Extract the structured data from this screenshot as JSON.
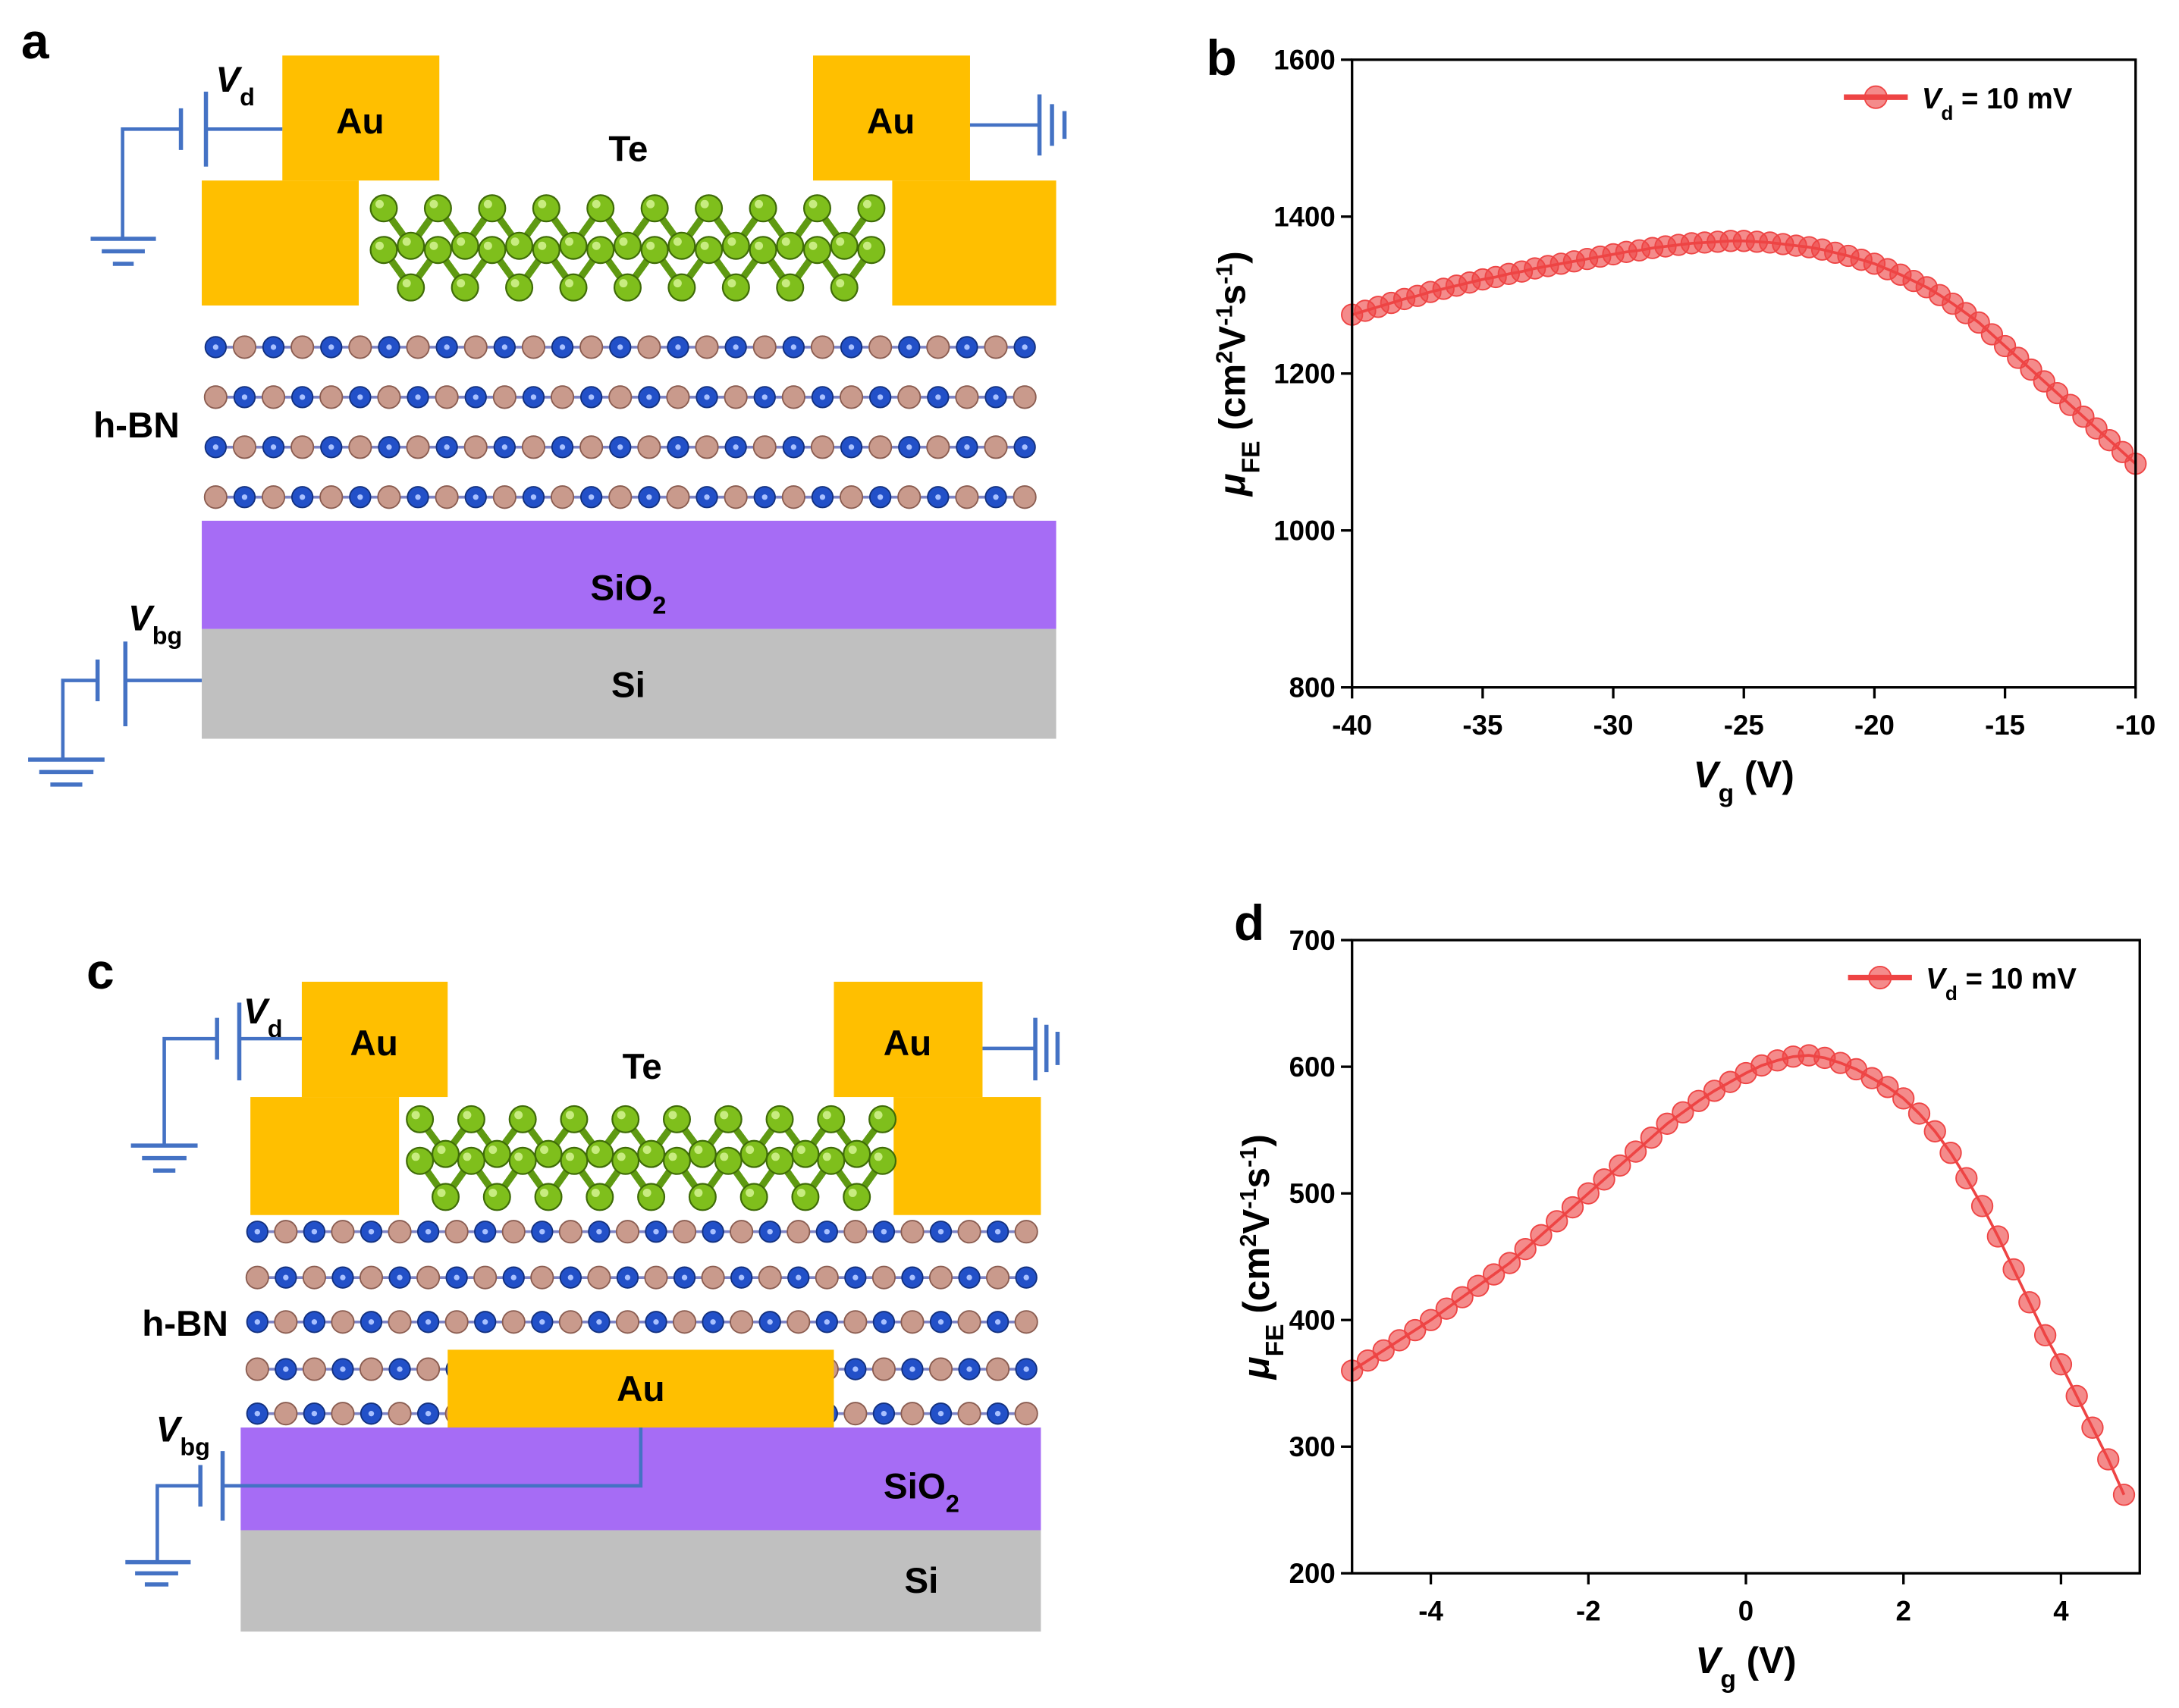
{
  "panels": {
    "a": {
      "letter": "a",
      "au": [
        "Au",
        "Au"
      ],
      "te": "Te",
      "hbn": "h-BN",
      "sio2": {
        "text": "SiO",
        "sub": "2"
      },
      "si": "Si",
      "vd": {
        "symbol": "V",
        "sub": "d"
      },
      "vbg": {
        "symbol": "V",
        "sub": "bg"
      }
    },
    "c": {
      "letter": "c",
      "au": [
        "Au",
        "Au",
        "Au"
      ],
      "te": "Te",
      "hbn": "h-BN",
      "sio2": {
        "text": "SiO",
        "sub": "2"
      },
      "si": "Si",
      "vd": {
        "symbol": "V",
        "sub": "d"
      },
      "vbg": {
        "symbol": "V",
        "sub": "bg"
      }
    }
  },
  "chart_data": [
    {
      "type": "line",
      "panel_label": "b",
      "x": [
        -40,
        -39.5,
        -39,
        -38.5,
        -38,
        -37.5,
        -37,
        -36.5,
        -36,
        -35.5,
        -35,
        -34.5,
        -34,
        -33.5,
        -33,
        -32.5,
        -32,
        -31.5,
        -31,
        -30.5,
        -30,
        -29.5,
        -29,
        -28.5,
        -28,
        -27.5,
        -27,
        -26.5,
        -26,
        -25.5,
        -25,
        -24.5,
        -24,
        -23.5,
        -23,
        -22.5,
        -22,
        -21.5,
        -21,
        -20.5,
        -20,
        -19.5,
        -19,
        -18.5,
        -18,
        -17.5,
        -17,
        -16.5,
        -16,
        -15.5,
        -15,
        -14.5,
        -14,
        -13.5,
        -13,
        -12.5,
        -12,
        -11.5,
        -11,
        -10.5,
        -10
      ],
      "series": [
        {
          "name": {
            "symbol": "V",
            "sub": "d",
            "rest": " = 10 mV"
          },
          "color": "#ee4444",
          "values": [
            1275,
            1280,
            1285,
            1290,
            1295,
            1299,
            1304,
            1308,
            1312,
            1316,
            1320,
            1323,
            1327,
            1330,
            1334,
            1337,
            1340,
            1343,
            1346,
            1349,
            1352,
            1355,
            1357,
            1360,
            1362,
            1364,
            1366,
            1367,
            1368,
            1369,
            1369,
            1368,
            1367,
            1365,
            1363,
            1361,
            1358,
            1354,
            1350,
            1345,
            1340,
            1333,
            1326,
            1318,
            1310,
            1300,
            1289,
            1277,
            1265,
            1250,
            1235,
            1220,
            1205,
            1190,
            1175,
            1160,
            1145,
            1130,
            1115,
            1100,
            1085
          ]
        }
      ],
      "xlabel": {
        "symbol": "V",
        "sub": "g",
        "unit": " (V)"
      },
      "ylabel": {
        "symbol": "μ",
        "sub": "FE",
        "unit": [
          " (cm",
          "2",
          "V",
          "-1",
          "s",
          "-1",
          ")"
        ]
      },
      "xlim": [
        -40,
        -10
      ],
      "xticks": [
        -40,
        -35,
        -30,
        -25,
        -20,
        -15,
        -10
      ],
      "ylim": [
        800,
        1600
      ],
      "yticks": [
        800,
        1000,
        1200,
        1400,
        1600
      ],
      "legend": "upper right"
    },
    {
      "type": "line",
      "panel_label": "d",
      "x": [
        -5,
        -4.8,
        -4.6,
        -4.4,
        -4.2,
        -4,
        -3.8,
        -3.6,
        -3.4,
        -3.2,
        -3,
        -2.8,
        -2.6,
        -2.4,
        -2.2,
        -2,
        -1.8,
        -1.6,
        -1.4,
        -1.2,
        -1,
        -0.8,
        -0.6,
        -0.4,
        -0.2,
        0,
        0.2,
        0.4,
        0.6,
        0.8,
        1,
        1.2,
        1.4,
        1.6,
        1.8,
        2,
        2.2,
        2.4,
        2.6,
        2.8,
        3,
        3.2,
        3.4,
        3.6,
        3.8,
        4,
        4.2,
        4.4,
        4.6,
        4.8
      ],
      "series": [
        {
          "name": {
            "symbol": "V",
            "sub": "d",
            "rest": " = 10 mV"
          },
          "color": "#ee4444",
          "values": [
            360,
            368,
            376,
            384,
            392,
            400,
            409,
            418,
            427,
            436,
            445,
            456,
            467,
            478,
            489,
            500,
            511,
            522,
            533,
            544,
            555,
            564,
            573,
            581,
            588,
            595,
            601,
            605,
            608,
            609,
            607,
            603,
            598,
            591,
            584,
            575,
            563,
            549,
            532,
            512,
            490,
            466,
            440,
            414,
            388,
            365,
            340,
            315,
            290,
            262
          ]
        }
      ],
      "xlabel": {
        "symbol": "V",
        "sub": "g",
        "unit": " (V)"
      },
      "ylabel": {
        "symbol": "μ",
        "sub": "FE",
        "unit": [
          " (cm",
          "2",
          "V",
          "-1",
          "s",
          "-1",
          ")"
        ]
      },
      "xlim": [
        -5,
        5
      ],
      "xticks": [
        -4,
        -2,
        0,
        2,
        4
      ],
      "ylim": [
        200,
        700
      ],
      "yticks": [
        200,
        300,
        400,
        500,
        600,
        700
      ],
      "legend": "upper right"
    }
  ]
}
